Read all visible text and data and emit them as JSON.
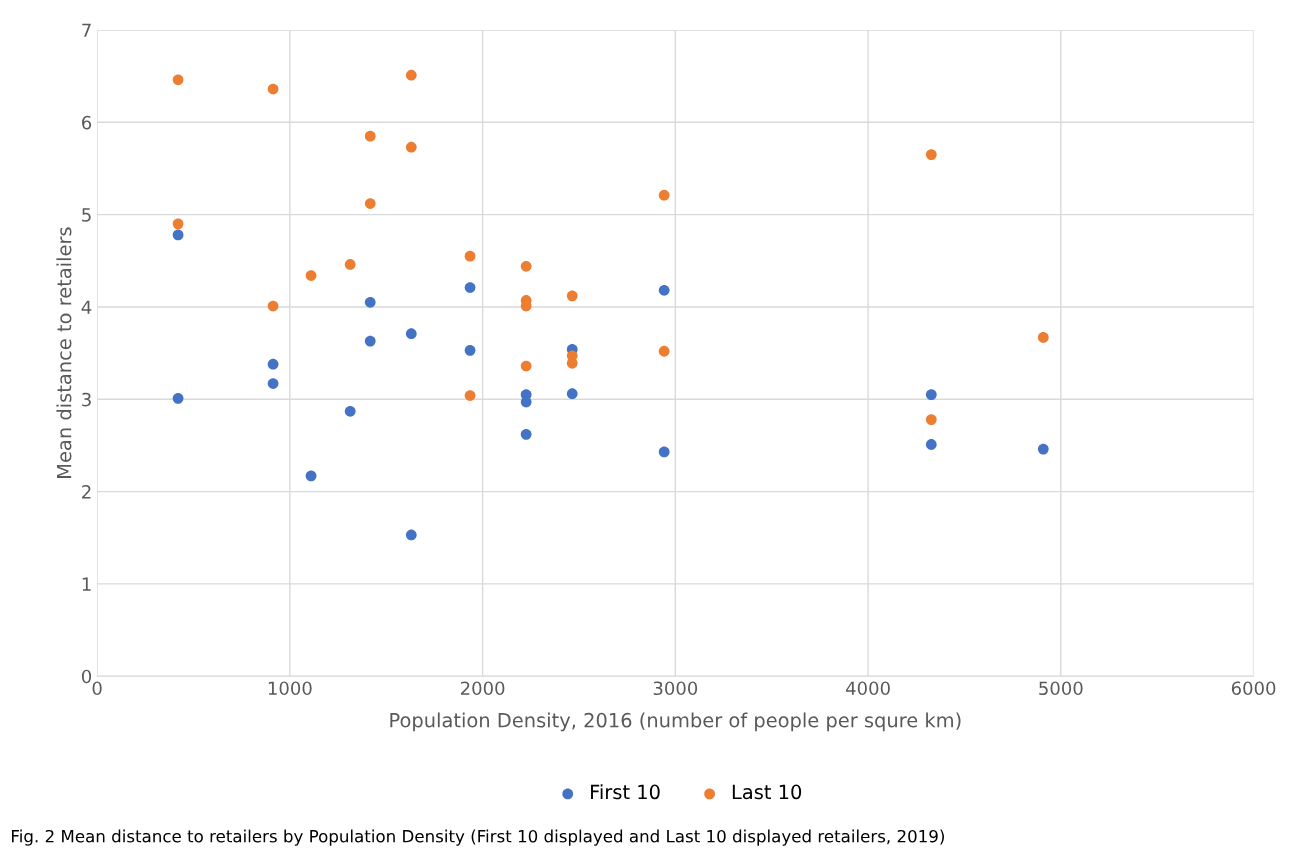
{
  "chart_data": {
    "type": "scatter",
    "xlabel": "Population Density, 2016 (number of people per squre km)",
    "ylabel": "Mean distance to retailers",
    "xlim": [
      0,
      6000
    ],
    "xticks": [
      0,
      1000,
      2000,
      3000,
      4000,
      5000,
      6000
    ],
    "ylim": [
      0,
      7
    ],
    "yticks": [
      0,
      1,
      2,
      3,
      4,
      5,
      6,
      7
    ],
    "grid": true,
    "legend": "bottom",
    "marker": "circle",
    "series": [
      {
        "name": "First 10",
        "color": "#4472c4",
        "x": [
          420,
          420,
          913,
          913,
          1110,
          1313,
          1417,
          1417,
          1630,
          1630,
          1935,
          1935,
          2226,
          2226,
          2226,
          2465,
          2465,
          2942,
          2942,
          4328,
          4328,
          4909
        ],
        "values": [
          4.78,
          3.01,
          3.38,
          3.17,
          2.17,
          2.87,
          4.05,
          3.63,
          3.71,
          1.53,
          4.21,
          3.53,
          3.05,
          2.97,
          2.62,
          3.54,
          3.06,
          4.18,
          2.43,
          3.05,
          2.51,
          2.46
        ]
      },
      {
        "name": "Last 10",
        "color": "#ed7d31",
        "x": [
          420,
          420,
          913,
          913,
          1110,
          1313,
          1417,
          1417,
          1630,
          1630,
          1935,
          1935,
          2226,
          2226,
          2226,
          2226,
          2465,
          2465,
          2465,
          2942,
          2942,
          4328,
          4328,
          4909
        ],
        "values": [
          6.46,
          4.9,
          6.36,
          4.01,
          4.34,
          4.46,
          5.85,
          5.12,
          6.51,
          5.73,
          4.55,
          3.04,
          4.44,
          4.07,
          4.01,
          3.36,
          4.12,
          3.47,
          3.39,
          5.21,
          3.52,
          5.65,
          2.78,
          3.67
        ]
      }
    ],
    "annotations": [
      "Fig. 2 Mean distance to retailers by Population Density (First 10 displayed and Last 10 displayed retailers, 2019)"
    ]
  }
}
